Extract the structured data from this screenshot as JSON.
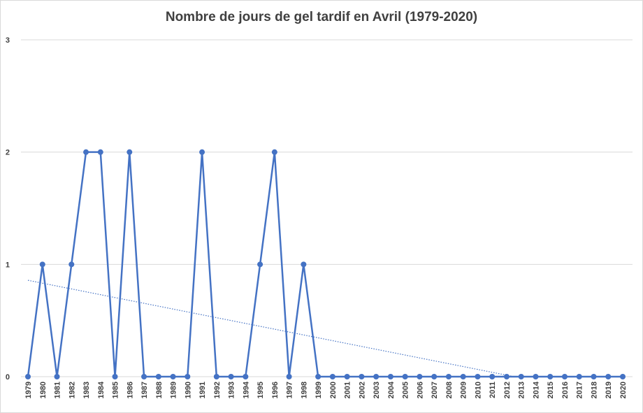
{
  "chart_data": {
    "type": "line",
    "title": "Nombre de jours de gel tardif en Avril (1979-2020)",
    "xlabel": "",
    "ylabel": "",
    "ylim": [
      0,
      3
    ],
    "yticks": [
      0,
      1,
      2,
      3
    ],
    "grid": "horizontal",
    "legend": "none",
    "trendline": {
      "type": "linear",
      "style": "dotted",
      "clip_at_zero": true
    },
    "colors": {
      "series": "#4472c4",
      "grid": "#d9d9d9",
      "text": "#404040"
    },
    "categories": [
      "1979",
      "1980",
      "1981",
      "1982",
      "1983",
      "1984",
      "1985",
      "1986",
      "1987",
      "1988",
      "1989",
      "1990",
      "1991",
      "1992",
      "1993",
      "1994",
      "1995",
      "1996",
      "1997",
      "1998",
      "1999",
      "2000",
      "2001",
      "2002",
      "2003",
      "2004",
      "2005",
      "2006",
      "2007",
      "2008",
      "2009",
      "2010",
      "2011",
      "2012",
      "2013",
      "2014",
      "2015",
      "2016",
      "2017",
      "2018",
      "2019",
      "2020"
    ],
    "series": [
      {
        "values": [
          0,
          1,
          0,
          1,
          2,
          2,
          0,
          2,
          0,
          0,
          0,
          0,
          2,
          0,
          0,
          0,
          1,
          2,
          0,
          1,
          0,
          0,
          0,
          0,
          0,
          0,
          0,
          0,
          0,
          0,
          0,
          0,
          0,
          0,
          0,
          0,
          0,
          0,
          0,
          0,
          0,
          0
        ]
      }
    ]
  }
}
